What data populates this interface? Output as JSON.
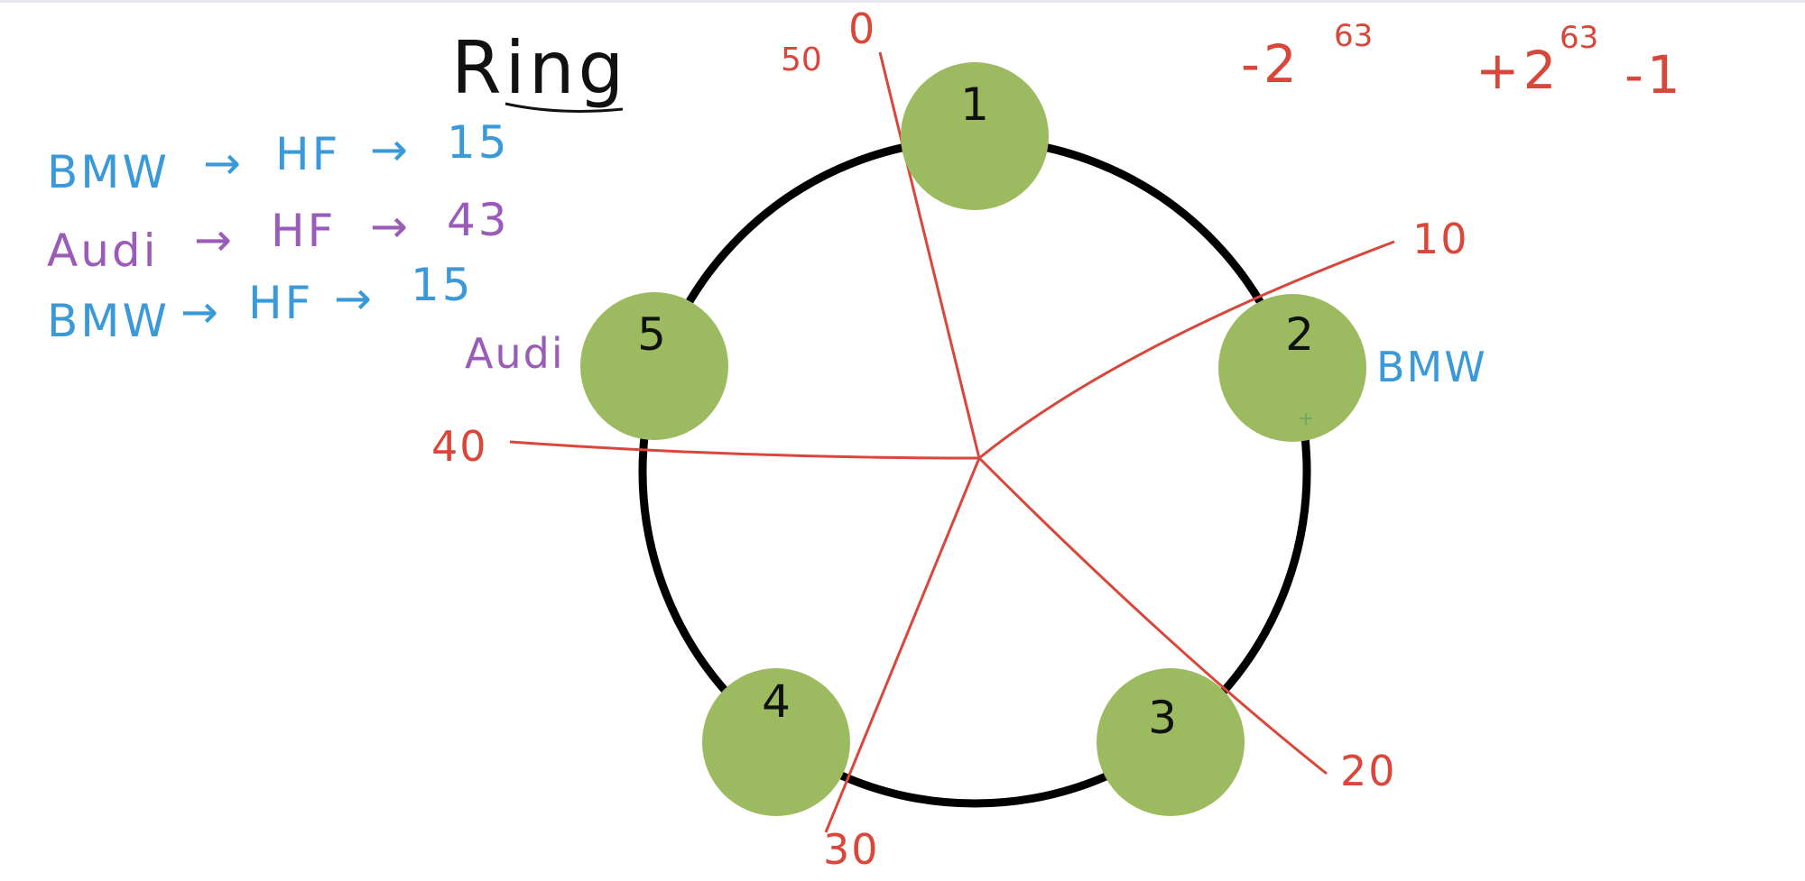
{
  "title": "Ring",
  "hash_notes": [
    {
      "key": "BMW",
      "fn": "HF",
      "value": "15",
      "color": "#3a9ad9"
    },
    {
      "key": "Audi",
      "fn": "HF",
      "value": "43",
      "color": "#9b5bb8"
    },
    {
      "key": "BMW",
      "fn": "HF",
      "value": "15",
      "color": "#3a9ad9"
    }
  ],
  "range": {
    "min_base": "-2",
    "min_exp": "63",
    "max_base": "+2",
    "max_exp": "63",
    "max_suffix": "-1"
  },
  "nodes": [
    {
      "label": "1"
    },
    {
      "label": "2"
    },
    {
      "label": "3"
    },
    {
      "label": "4"
    },
    {
      "label": "5"
    }
  ],
  "node_color": "#9cba60",
  "ring_color": "#000000",
  "partition_color": "#d9473b",
  "partition_labels": {
    "p0": "0",
    "p50": "50",
    "p10": "10",
    "p20": "20",
    "p30": "30",
    "p40": "40"
  },
  "key_labels": {
    "bmw": "BMW",
    "audi": "Audi"
  }
}
